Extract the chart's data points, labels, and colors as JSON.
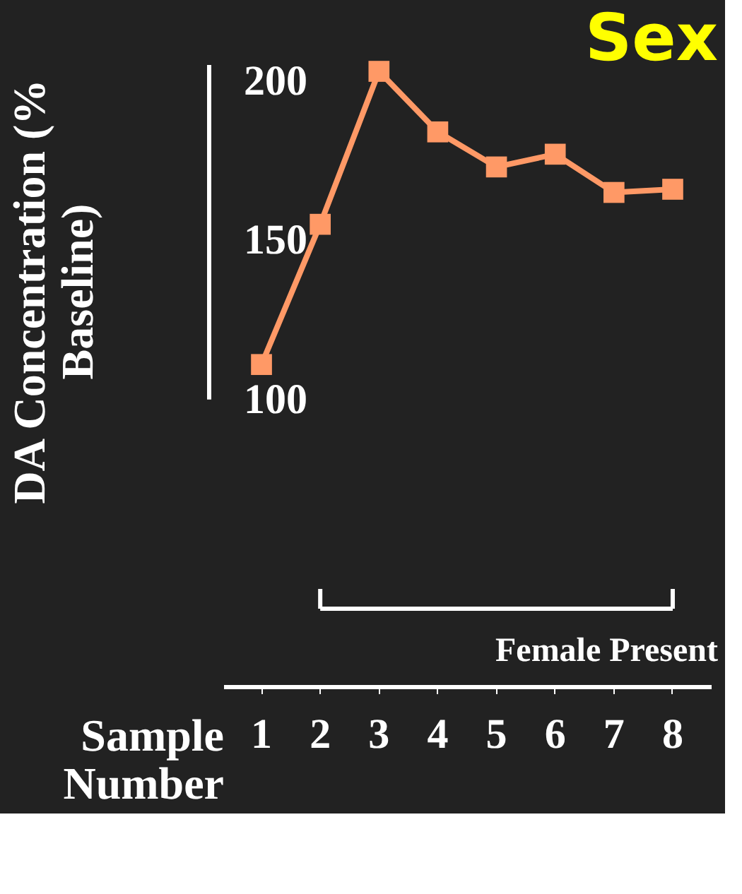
{
  "chart_data": {
    "type": "line",
    "title": "Sex",
    "xlabel": "Sample Number",
    "ylabel": "DA Concentration (% Baseline)",
    "categories": [
      "1",
      "2",
      "3",
      "4",
      "5",
      "6",
      "7",
      "8"
    ],
    "series": [
      {
        "color": "#ff9966",
        "values": [
          111,
          155,
          203,
          184,
          173,
          177,
          165,
          166
        ]
      }
    ],
    "ylim": [
      10,
      205
    ],
    "yticks": [
      100,
      150,
      200
    ],
    "marker": "square",
    "line_style": "solid",
    "grid": false,
    "annotations": [
      "Female Present"
    ]
  }
}
